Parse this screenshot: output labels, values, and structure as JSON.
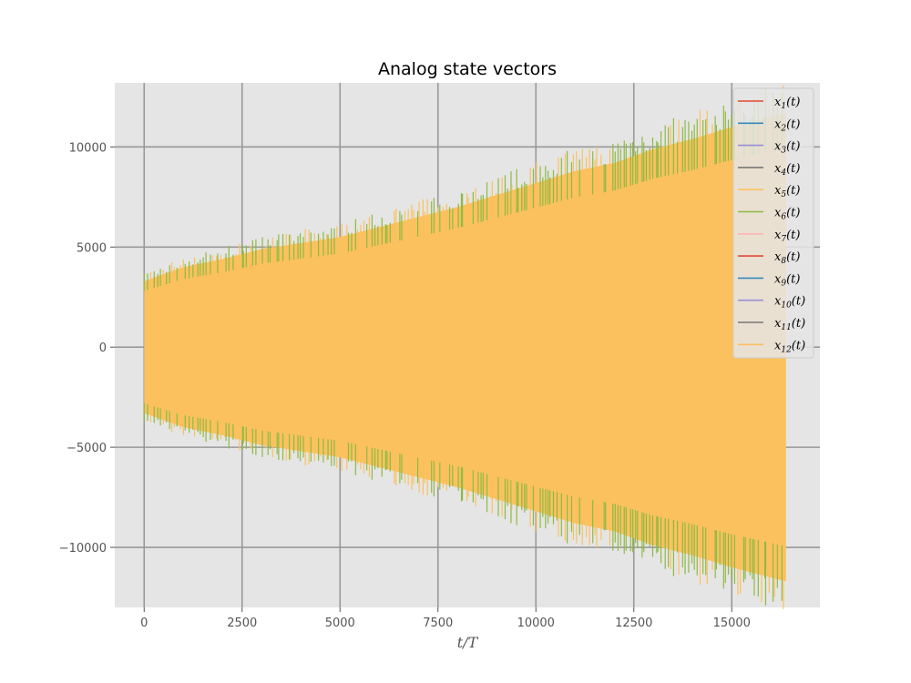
{
  "chart_data": {
    "type": "line",
    "title": "Analog state vectors",
    "xlabel": "t/T",
    "ylabel": "",
    "xlim": [
      -750,
      17250
    ],
    "ylim": [
      -13000,
      13200
    ],
    "xticks": [
      0,
      2500,
      5000,
      7500,
      10000,
      12500,
      15000
    ],
    "xtick_labels": [
      "0",
      "2500",
      "5000",
      "7500",
      "10000",
      "12500",
      "15000"
    ],
    "yticks": [
      10000,
      5000,
      0,
      -5000,
      -10000
    ],
    "ytick_labels": [
      "10000",
      "5000",
      "0",
      "−5000",
      "−10000"
    ],
    "grid": true,
    "legend_position": "top-right",
    "x_range": [
      0,
      16384
    ],
    "envelope": {
      "x": [
        0,
        1000,
        2000,
        3000,
        4000,
        5000,
        6000,
        7000,
        8000,
        9000,
        10000,
        11000,
        12000,
        13000,
        14000,
        15000,
        16384
      ],
      "upper": [
        3300,
        4000,
        4400,
        4900,
        5200,
        5500,
        6000,
        6500,
        7000,
        7600,
        8200,
        8800,
        9200,
        9900,
        10400,
        11000,
        11700
      ],
      "lower": [
        -3300,
        -4000,
        -4400,
        -4900,
        -5200,
        -5500,
        -6000,
        -6500,
        -7000,
        -7600,
        -8200,
        -8800,
        -9200,
        -9900,
        -10400,
        -11000,
        -11700
      ]
    },
    "series": [
      {
        "sub": "1",
        "color": "#E24A33"
      },
      {
        "sub": "2",
        "color": "#348ABD"
      },
      {
        "sub": "3",
        "color": "#988ED5"
      },
      {
        "sub": "4",
        "color": "#777777"
      },
      {
        "sub": "5",
        "color": "#FBC15E"
      },
      {
        "sub": "6",
        "color": "#8EBA42"
      },
      {
        "sub": "7",
        "color": "#FFB5B8"
      },
      {
        "sub": "8",
        "color": "#E24A33"
      },
      {
        "sub": "9",
        "color": "#348ABD"
      },
      {
        "sub": "10",
        "color": "#988ED5"
      },
      {
        "sub": "11",
        "color": "#777777"
      },
      {
        "sub": "12",
        "color": "#FBC15E"
      }
    ]
  }
}
